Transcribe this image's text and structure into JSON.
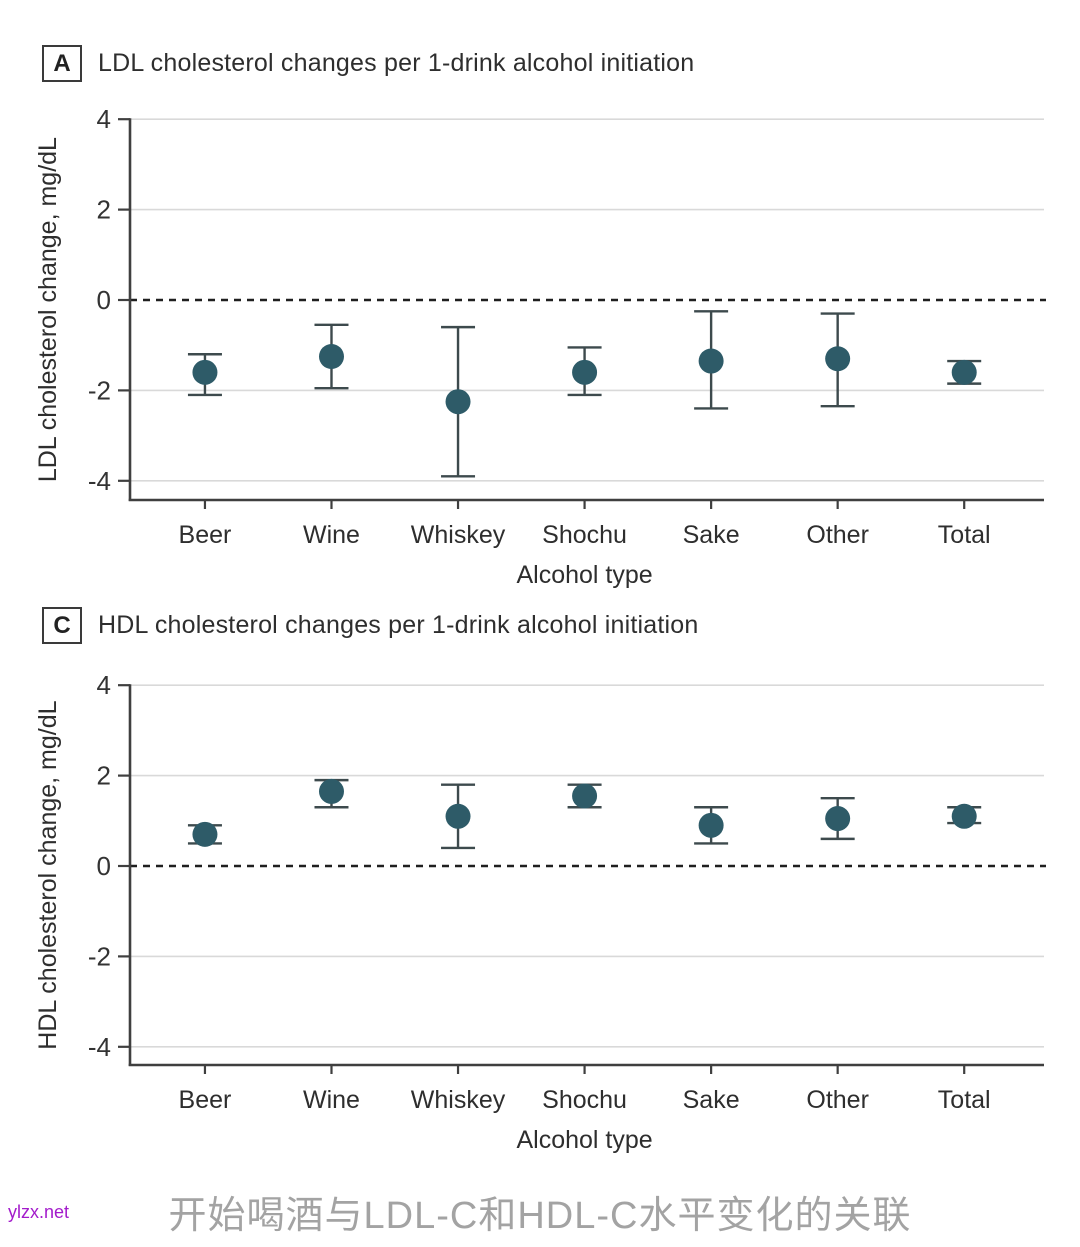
{
  "chart_data": [
    {
      "panel_label": "A",
      "type": "scatter",
      "title": "LDL cholesterol changes per 1-drink alcohol initiation",
      "xlabel": "Alcohol type",
      "ylabel": "LDL cholesterol change, mg/dL",
      "categories": [
        "Beer",
        "Wine",
        "Whiskey",
        "Shochu",
        "Sake",
        "Other",
        "Total"
      ],
      "estimates": [
        -1.6,
        -1.25,
        -2.25,
        -1.6,
        -1.35,
        -1.3,
        -1.6
      ],
      "ci_low": [
        -2.1,
        -1.95,
        -3.9,
        -2.1,
        -2.4,
        -2.35,
        -1.85
      ],
      "ci_high": [
        -1.2,
        -0.55,
        -0.6,
        -1.05,
        -0.25,
        -0.3,
        -1.35
      ],
      "yticks": [
        4,
        2,
        0,
        -2,
        -4
      ],
      "ylim": [
        -4.4,
        4
      ],
      "zero_line": "dashed",
      "grid": true,
      "legend_position": "none"
    },
    {
      "panel_label": "C",
      "type": "scatter",
      "title": "HDL cholesterol changes per 1-drink alcohol initiation",
      "xlabel": "Alcohol type",
      "ylabel": "HDL cholesterol change, mg/dL",
      "categories": [
        "Beer",
        "Wine",
        "Whiskey",
        "Shochu",
        "Sake",
        "Other",
        "Total"
      ],
      "estimates": [
        0.7,
        1.65,
        1.1,
        1.55,
        0.9,
        1.05,
        1.1
      ],
      "ci_low": [
        0.5,
        1.3,
        0.4,
        1.3,
        0.5,
        0.6,
        0.95
      ],
      "ci_high": [
        0.9,
        1.9,
        1.8,
        1.8,
        1.3,
        1.5,
        1.3
      ],
      "yticks": [
        4,
        2,
        0,
        -2,
        -4
      ],
      "ylim": [
        -4.4,
        4
      ],
      "zero_line": "dashed",
      "grid": true,
      "legend_position": "none"
    }
  ],
  "caption": {
    "text": "开始喝酒与LDL-C和HDL-C水平变化的关联"
  },
  "watermark": {
    "text": "ylzx.net"
  },
  "colors": {
    "marker": "#2e5b68",
    "error_bar": "#3d4a4d",
    "grid": "#d9d9d9",
    "zero_line": "#1f1f1f",
    "axis": "#3f3f3f",
    "text": "#2e2e2e",
    "tick_label": "#333333",
    "caption": "#a3a3a3",
    "watermark": "#a31bcb"
  }
}
